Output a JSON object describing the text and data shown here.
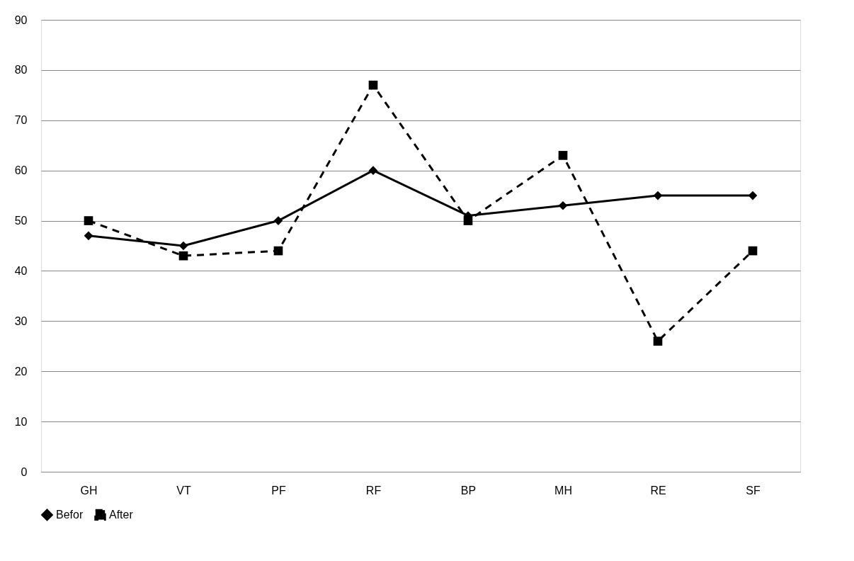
{
  "chart_data": {
    "type": "line",
    "categories": [
      "GH",
      "VT",
      "PF",
      "RF",
      "BP",
      "MH",
      "RE",
      "SF"
    ],
    "series": [
      {
        "name": "Befor",
        "color": "#000000",
        "marker": "diamond",
        "line_style": "solid",
        "values": [
          47,
          45,
          50,
          60,
          51,
          53,
          55,
          55
        ]
      },
      {
        "name": "After",
        "color": "#000000",
        "marker": "square",
        "line_style": "dashed",
        "values": [
          50,
          43,
          44,
          77,
          50,
          63,
          26,
          44
        ]
      }
    ],
    "ylim": [
      0,
      90
    ],
    "yticks": [
      0,
      10,
      20,
      30,
      40,
      50,
      60,
      70,
      80,
      90
    ],
    "grid": "y",
    "legend": "bottom"
  }
}
